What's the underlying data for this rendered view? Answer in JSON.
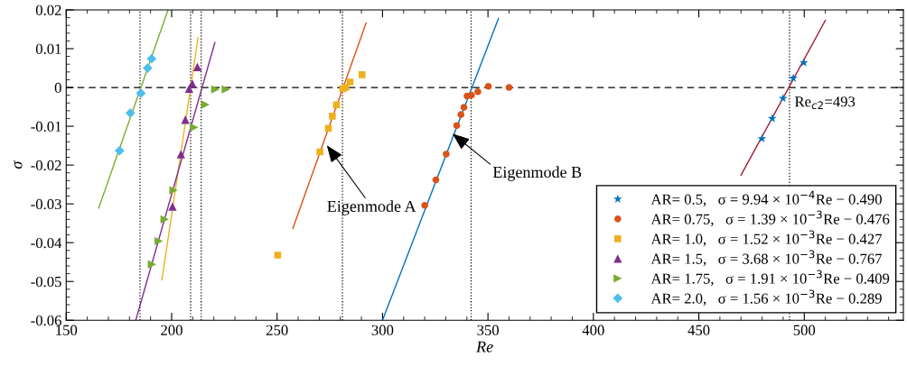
{
  "chart_data": {
    "type": "scatter",
    "xlabel": "Re",
    "ylabel": "σ",
    "xlim": [
      150,
      547
    ],
    "ylim": [
      -0.06,
      0.02
    ],
    "xticks": [
      150,
      200,
      250,
      300,
      350,
      400,
      450,
      500
    ],
    "yticks": [
      {
        "value": -0.06,
        "label": "-0.06"
      },
      {
        "value": -0.05,
        "label": "-0.05"
      },
      {
        "value": -0.04,
        "label": "-0.04"
      },
      {
        "value": -0.03,
        "label": "-0.03"
      },
      {
        "value": -0.02,
        "label": "-0.02"
      },
      {
        "value": -0.01,
        "label": "-0.01"
      },
      {
        "value": 0,
        "label": "0"
      },
      {
        "value": 0.01,
        "label": "0.01"
      },
      {
        "value": 0.02,
        "label": "0.02"
      }
    ],
    "grid": false,
    "legend": "bottom right",
    "series": [
      {
        "name": "AR= 0.5,   σ = 9.94 × 10$^{−4}$Re − 0.490",
        "color": "#0072bd",
        "marker": "star",
        "x": [
          479.9,
          484.8,
          489.9,
          494.8,
          499.8
        ],
        "values": [
          -0.0132,
          -0.008,
          -0.0028,
          0.0024,
          0.0064
        ]
      },
      {
        "name": "AR= 0.75,   σ = 1.39 × 10$^{−3}$Re − 0.476",
        "color": "#d95319",
        "marker": "circle",
        "x": [
          320,
          325.3,
          330.2,
          335.2,
          337.2,
          338.6,
          340.1,
          342.2,
          345.2,
          350.2,
          360
        ],
        "values": [
          -0.0304,
          -0.0238,
          -0.0172,
          -0.0098,
          -0.007,
          -0.0051,
          -0.0022,
          -0.002,
          -0.0011,
          0.0003,
          0
        ]
      },
      {
        "name": "AR= 1.0,   σ = 1.52 × 10$^{−3}$Re − 0.427",
        "color": "#edb120",
        "marker": "square",
        "x": [
          250.3,
          270.3,
          274.3,
          276.2,
          278.2,
          281.2,
          282.6,
          284.6,
          290.3
        ],
        "values": [
          -0.0432,
          -0.0166,
          -0.0105,
          -0.0074,
          -0.0045,
          -0.0003,
          0,
          0.0014,
          0.0033
        ]
      },
      {
        "name": "AR= 1.5,   σ = 3.68 × 10$^{−3}$Re − 0.767",
        "color": "#7e2f8e",
        "marker": "triangle",
        "x": [
          200.4,
          204.4,
          206.5,
          208.3,
          209.8,
          212.2
        ],
        "values": [
          -0.0307,
          -0.0172,
          -0.0083,
          -0.0003,
          0.001,
          0.0053
        ]
      },
      {
        "name": "AR= 1.75,   σ = 1.91 × 10$^{−3}$Re − 0.409",
        "color": "#77ac30",
        "marker": "triangle_right",
        "x": [
          190.7,
          193.9,
          196.7,
          200.9,
          210.7,
          216,
          220.7,
          225.7
        ],
        "values": [
          -0.0456,
          -0.0396,
          -0.034,
          -0.0265,
          -0.0103,
          -0.0044,
          -0.0005,
          -0.0005
        ]
      },
      {
        "name": "AR= 2.0,   σ = 1.56 × 10$^{−3}$Re − 0.289",
        "color": "#4dbeee",
        "marker": "diamond",
        "x": [
          175.3,
          180.4,
          185.4,
          188.6,
          190.5
        ],
        "values": [
          -0.0163,
          -0.0066,
          -0.0015,
          0.005,
          0.0074
        ]
      },
      {
        "type": "line",
        "color": "#a2142f",
        "marker": "none",
        "x": [
          470,
          510
        ],
        "values": [
          -0.0226,
          0.0173
        ]
      },
      {
        "type": "line",
        "color": "#0072bd",
        "marker": "none",
        "x": [
          300,
          355
        ],
        "values": [
          -0.06,
          0.0178
        ]
      },
      {
        "type": "line",
        "color": "#d95319",
        "marker": "none",
        "x": [
          257.5,
          292.2
        ],
        "values": [
          -0.0363,
          0.0166
        ]
      },
      {
        "type": "line",
        "color": "#edb120",
        "marker": "none",
        "x": [
          195.4,
          212.5
        ],
        "values": [
          -0.0496,
          0.0128
        ]
      },
      {
        "type": "line",
        "color": "#7e2f8e",
        "marker": "none",
        "x": [
          183,
          220.5
        ],
        "values": [
          -0.06,
          0.0116
        ]
      },
      {
        "type": "line",
        "color": "#77ac30",
        "marker": "none",
        "x": [
          165.4,
          198.3
        ],
        "values": [
          -0.0311,
          0.02
        ]
      }
    ],
    "ref_lines": [
      {
        "axis": "y",
        "value": 0,
        "line_style": "dashed"
      },
      {
        "axis": "x",
        "value": 185,
        "line_style": "dotted"
      },
      {
        "axis": "x",
        "value": 209,
        "line_style": "dotted"
      },
      {
        "axis": "x",
        "value": 214,
        "line_style": "dotted"
      },
      {
        "axis": "x",
        "value": 281,
        "line_style": "dotted"
      },
      {
        "axis": "x",
        "value": 342,
        "line_style": "dotted"
      },
      {
        "axis": "x",
        "value": 493,
        "line_style": "dotted",
        "label": "Re$_{c2}$=493"
      }
    ],
    "annotations": [
      {
        "text": "Eigenmode A",
        "x": 273.6,
        "y": -0.0149
      },
      {
        "text": "Eigenmode B",
        "x": 333.2,
        "y": -0.0119
      }
    ]
  }
}
